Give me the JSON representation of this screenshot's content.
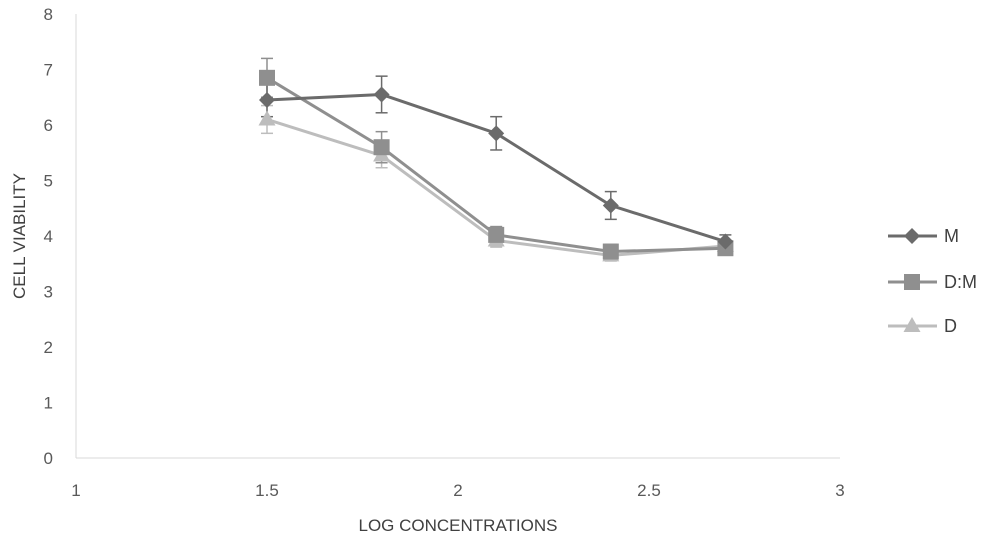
{
  "chart_data": {
    "type": "line",
    "title": "",
    "xlabel": "LOG CONCENTRATIONS",
    "ylabel": "CELL  VIABILITY",
    "xlim": [
      1,
      3
    ],
    "ylim": [
      0,
      8
    ],
    "xticks": [
      1,
      1.5,
      2,
      2.5,
      3
    ],
    "xtick_labels": [
      "1",
      "1.5",
      "2",
      "2.5",
      "3"
    ],
    "yticks": [
      0,
      1,
      2,
      3,
      4,
      5,
      6,
      7,
      8
    ],
    "ytick_labels": [
      "0",
      "1",
      "2",
      "3",
      "4",
      "5",
      "6",
      "7",
      "8"
    ],
    "grid": false,
    "legend_position": "right",
    "x": [
      1.5,
      1.8,
      2.1,
      2.4,
      2.7
    ],
    "series": [
      {
        "name": "M",
        "marker": "diamond",
        "color": "#6b6b6b",
        "values": [
          6.45,
          6.55,
          5.85,
          4.55,
          3.9
        ],
        "errors": [
          0.3,
          0.33,
          0.3,
          0.25,
          0.12
        ]
      },
      {
        "name": "D:M",
        "marker": "square",
        "color": "#8f8f8f",
        "values": [
          6.85,
          5.6,
          4.02,
          3.72,
          3.78
        ],
        "errors": [
          0.35,
          0.28,
          0.15,
          0.13,
          0.1
        ]
      },
      {
        "name": "D",
        "marker": "triangle",
        "color": "#bdbdbd",
        "values": [
          6.1,
          5.45,
          3.92,
          3.65,
          3.82
        ],
        "errors": [
          0.25,
          0.22,
          0.12,
          0.1,
          0.1
        ]
      }
    ]
  }
}
